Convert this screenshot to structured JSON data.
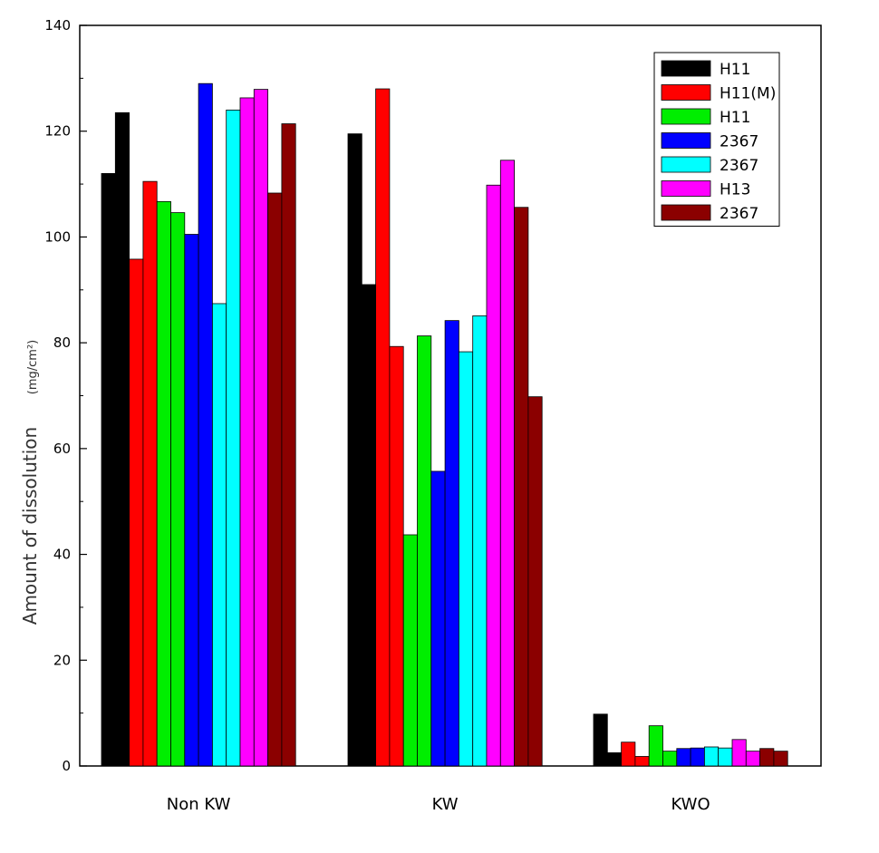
{
  "chart_data": {
    "type": "bar",
    "title": "",
    "xlabel": "",
    "ylabel": "Amount of dissolution",
    "yunit": "(mg/cm²)",
    "ylim": [
      0,
      140
    ],
    "yticks": [
      0,
      20,
      40,
      60,
      80,
      100,
      120,
      140
    ],
    "categories": [
      "Non KW",
      "KW",
      "KWO"
    ],
    "legend_position": "top-right",
    "grid": false,
    "series": [
      {
        "name": "H11",
        "color": "#000000",
        "values": [
          [
            112,
            123.5
          ],
          [
            119.5,
            91
          ],
          [
            9.8,
            2.5
          ]
        ]
      },
      {
        "name": "H11(M)",
        "color": "#ff0000",
        "values": [
          [
            95.8,
            110.5
          ],
          [
            128,
            79.3
          ],
          [
            4.5,
            1.8
          ]
        ]
      },
      {
        "name": "H11",
        "color": "#00ee00",
        "values": [
          [
            106.7,
            104.6
          ],
          [
            43.7,
            81.3
          ],
          [
            7.6,
            2.8
          ]
        ]
      },
      {
        "name": "2367",
        "color": "#0000ff",
        "values": [
          [
            100.5,
            129
          ],
          [
            55.7,
            84.2
          ],
          [
            3.3,
            3.4
          ]
        ]
      },
      {
        "name": "2367",
        "color": "#00ffff",
        "values": [
          [
            87.4,
            124
          ],
          [
            78.3,
            85.1
          ],
          [
            3.6,
            3.4
          ]
        ]
      },
      {
        "name": "H13",
        "color": "#ff00ff",
        "values": [
          [
            126.3,
            127.9
          ],
          [
            109.8,
            114.5
          ],
          [
            5,
            2.8
          ]
        ]
      },
      {
        "name": "2367",
        "color": "#8b0000",
        "values": [
          [
            108.3,
            121.4
          ],
          [
            105.6,
            69.8
          ],
          [
            3.3,
            2.8
          ]
        ]
      }
    ]
  }
}
